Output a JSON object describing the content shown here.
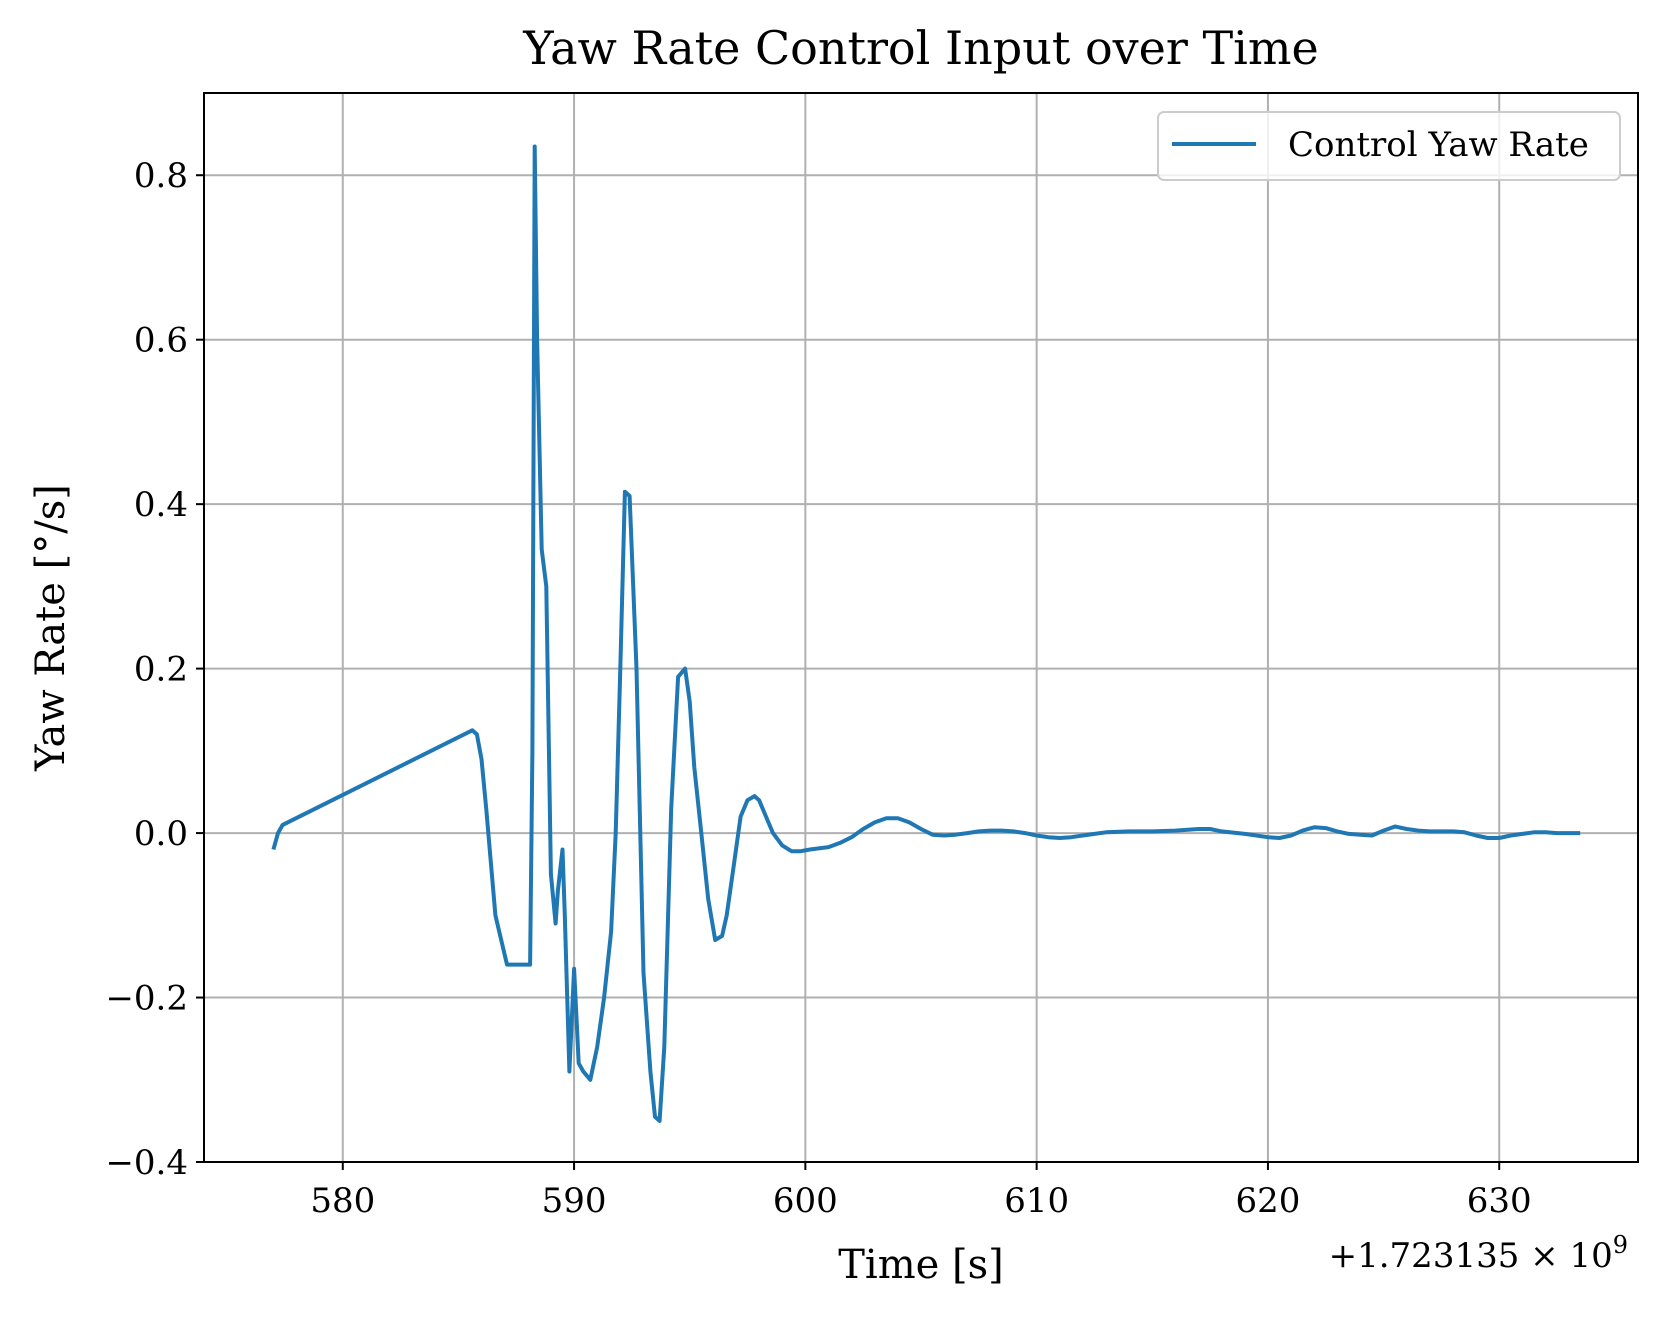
{
  "chart_data": {
    "type": "line",
    "title": "Yaw Rate Control Input over Time",
    "xlabel": "Time [s]",
    "ylabel": "Yaw Rate [°/s]",
    "x_offset_label": "+1.723135 × 10",
    "x_offset_exponent": "9",
    "xlim": [
      574,
      636
    ],
    "ylim": [
      -0.4,
      0.9
    ],
    "x_ticks": [
      580,
      590,
      600,
      610,
      620,
      630
    ],
    "x_tick_labels": [
      "580",
      "590",
      "600",
      "610",
      "620",
      "630"
    ],
    "y_ticks": [
      -0.4,
      -0.2,
      0.0,
      0.2,
      0.4,
      0.6,
      0.8
    ],
    "y_tick_labels": [
      "−0.4",
      "−0.2",
      "0.0",
      "0.2",
      "0.4",
      "0.6",
      "0.8"
    ],
    "grid": true,
    "legend_position": "top-right",
    "colors": {
      "series": "#1f77b4",
      "grid": "#b0b0b0",
      "axis": "#000000"
    },
    "series": [
      {
        "name": "Control Yaw Rate",
        "x": [
          577.0,
          577.2,
          577.4,
          585.6,
          585.8,
          586.0,
          586.2,
          586.6,
          587.1,
          587.6,
          588.1,
          588.2,
          588.3,
          588.4,
          588.6,
          588.8,
          589.0,
          589.2,
          589.3,
          589.5,
          589.6,
          589.8,
          590.0,
          590.2,
          590.4,
          590.7,
          591.0,
          591.3,
          591.6,
          591.8,
          592.0,
          592.2,
          592.4,
          592.7,
          593.0,
          593.3,
          593.5,
          593.7,
          593.9,
          594.2,
          594.5,
          594.8,
          595.0,
          595.2,
          595.5,
          595.8,
          596.1,
          596.4,
          596.6,
          596.9,
          597.2,
          597.5,
          597.8,
          598.0,
          598.3,
          598.6,
          599.0,
          599.4,
          599.8,
          600.2,
          601.0,
          601.5,
          602.0,
          602.5,
          603.0,
          603.5,
          604.0,
          604.5,
          605.0,
          605.5,
          606.0,
          606.5,
          607.0,
          607.5,
          608.0,
          608.5,
          609.0,
          609.5,
          610.0,
          610.5,
          611.0,
          611.5,
          612.0,
          612.5,
          613.0,
          614.0,
          615.0,
          616.0,
          617.0,
          617.5,
          618.0,
          619.0,
          619.5,
          620.0,
          620.5,
          621.0,
          621.5,
          622.0,
          622.5,
          623.0,
          623.5,
          624.0,
          624.5,
          625.0,
          625.5,
          626.0,
          626.5,
          627.0,
          628.0,
          628.5,
          629.0,
          629.5,
          630.0,
          630.5,
          631.0,
          631.5,
          632.0,
          632.5,
          633.0,
          633.5
        ],
        "y": [
          -0.02,
          0.0,
          0.01,
          0.125,
          0.12,
          0.09,
          0.03,
          -0.1,
          -0.16,
          -0.16,
          -0.16,
          0.1,
          0.835,
          0.6,
          0.345,
          0.3,
          -0.05,
          -0.11,
          -0.07,
          -0.02,
          -0.1,
          -0.29,
          -0.165,
          -0.28,
          -0.29,
          -0.3,
          -0.26,
          -0.2,
          -0.12,
          0.0,
          0.2,
          0.415,
          0.41,
          0.2,
          -0.17,
          -0.29,
          -0.345,
          -0.35,
          -0.26,
          0.03,
          0.19,
          0.2,
          0.16,
          0.08,
          0.0,
          -0.08,
          -0.13,
          -0.125,
          -0.1,
          -0.04,
          0.02,
          0.04,
          0.045,
          0.04,
          0.02,
          0.0,
          -0.015,
          -0.022,
          -0.022,
          -0.02,
          -0.017,
          -0.012,
          -0.005,
          0.005,
          0.013,
          0.018,
          0.018,
          0.013,
          0.005,
          -0.002,
          -0.003,
          -0.002,
          0.0,
          0.002,
          0.003,
          0.003,
          0.002,
          0.0,
          -0.003,
          -0.005,
          -0.006,
          -0.005,
          -0.003,
          -0.001,
          0.001,
          0.002,
          0.002,
          0.003,
          0.005,
          0.005,
          0.002,
          -0.001,
          -0.003,
          -0.005,
          -0.006,
          -0.003,
          0.003,
          0.007,
          0.006,
          0.002,
          -0.001,
          -0.002,
          -0.003,
          0.003,
          0.008,
          0.005,
          0.003,
          0.002,
          0.002,
          0.001,
          -0.003,
          -0.006,
          -0.006,
          -0.003,
          -0.001,
          0.001,
          0.001,
          0.0,
          0.0,
          0.0
        ]
      }
    ]
  }
}
